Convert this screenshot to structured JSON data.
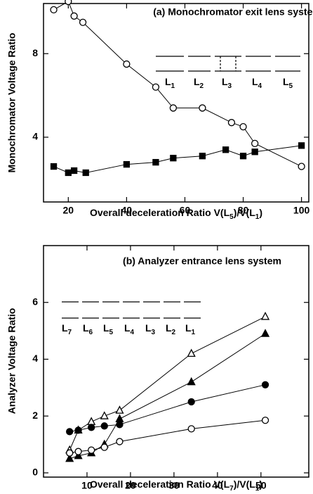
{
  "chart_data": [
    {
      "type": "line",
      "title": "(a)  Monochromator exit lens system",
      "x_label": [
        "Overall deceleration Ratio V(L",
        "5",
        ")/V(L",
        "1",
        ")"
      ],
      "y_label": "Monochromator Voltage Ratio",
      "xlim": [
        11.5,
        102.5
      ],
      "ylim": [
        0.9,
        10.4
      ],
      "xticks": [
        20,
        40,
        60,
        80,
        100
      ],
      "yticks": [
        4,
        8
      ],
      "lens_labels": [
        {
          "text": "L",
          "sub": "1"
        },
        {
          "text": "L",
          "sub": "2"
        },
        {
          "text": "L",
          "sub": "3"
        },
        {
          "text": "L",
          "sub": "4"
        },
        {
          "text": "L",
          "sub": "5"
        }
      ],
      "series": [
        {
          "marker": "open-circle",
          "color": "#000000",
          "x": [
            15,
            20,
            22,
            25,
            40,
            50,
            56,
            66,
            76,
            80,
            84,
            100
          ],
          "values": [
            10.1,
            10.5,
            9.8,
            9.5,
            7.5,
            6.4,
            5.4,
            5.4,
            4.7,
            4.5,
            3.7,
            2.6
          ]
        },
        {
          "marker": "filled-square",
          "color": "#000000",
          "x": [
            15,
            20,
            22,
            26,
            40,
            50,
            56,
            66,
            74,
            80,
            84,
            100
          ],
          "values": [
            2.6,
            2.3,
            2.4,
            2.3,
            2.7,
            2.8,
            3.0,
            3.1,
            3.4,
            3.1,
            3.3,
            3.6
          ]
        }
      ]
    },
    {
      "type": "line",
      "title": "(b)   Analyzer entrance lens system",
      "x_label": [
        "Overall deceleration Ratio V(L",
        "7",
        ")/V(L",
        "1",
        ")"
      ],
      "y_label": "Analyzer Voltage Ratio",
      "xlim": [
        0,
        61
      ],
      "ylim": [
        -0.15,
        8
      ],
      "xticks": [
        10,
        20,
        30,
        40,
        50
      ],
      "yticks": [
        0,
        2,
        4,
        6
      ],
      "lens_labels": [
        {
          "text": "L",
          "sub": "7"
        },
        {
          "text": "L",
          "sub": "6"
        },
        {
          "text": "L",
          "sub": "5"
        },
        {
          "text": "L",
          "sub": "4"
        },
        {
          "text": "L",
          "sub": "3"
        },
        {
          "text": "L",
          "sub": "2"
        },
        {
          "text": "L",
          "sub": "1"
        }
      ],
      "series": [
        {
          "marker": "open-triangle",
          "color": "#000000",
          "x": [
            6,
            8,
            11,
            14,
            17.5,
            34,
            51
          ],
          "values": [
            0.8,
            1.5,
            1.8,
            2.0,
            2.2,
            4.2,
            5.5
          ]
        },
        {
          "marker": "filled-triangle",
          "color": "#000000",
          "x": [
            6,
            8,
            11,
            14,
            17.5,
            34,
            51
          ],
          "values": [
            0.5,
            0.6,
            0.7,
            1.0,
            1.9,
            3.2,
            4.9
          ]
        },
        {
          "marker": "filled-circle",
          "color": "#000000",
          "x": [
            6,
            8,
            11,
            14,
            17.5,
            34,
            51
          ],
          "values": [
            1.45,
            1.5,
            1.6,
            1.65,
            1.7,
            2.5,
            3.1
          ]
        },
        {
          "marker": "open-circle",
          "color": "#000000",
          "x": [
            6,
            8,
            11,
            14,
            17.5,
            34,
            51
          ],
          "values": [
            0.7,
            0.75,
            0.8,
            0.9,
            1.1,
            1.55,
            1.85
          ]
        }
      ]
    }
  ]
}
